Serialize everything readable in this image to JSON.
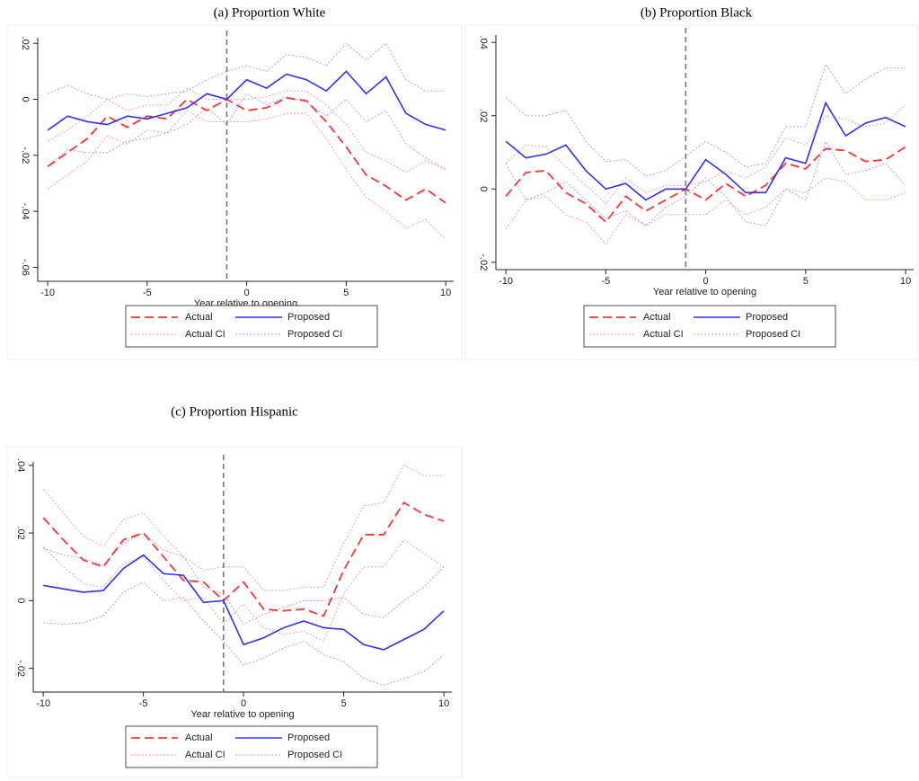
{
  "chart_data": [
    {
      "type": "line",
      "title": "(a) Proportion White",
      "xlabel": "Year relative to opening",
      "x": [
        -10,
        -9,
        -8,
        -7,
        -6,
        -5,
        -4,
        -3,
        -2,
        -1,
        0,
        1,
        2,
        3,
        4,
        5,
        6,
        7,
        8,
        9,
        10
      ],
      "xlim": [
        -10.5,
        10.4
      ],
      "xticks": [
        -10,
        -5,
        0,
        5,
        10
      ],
      "ylim": [
        -0.065,
        0.022
      ],
      "yticks": [
        {
          "value": -0.06,
          "label": "-.06"
        },
        {
          "value": -0.04,
          "label": "-.04"
        },
        {
          "value": -0.02,
          "label": "-.02"
        },
        0,
        {
          "value": 0.02,
          "label": ".02"
        }
      ],
      "vline": -1,
      "series": [
        {
          "name": "Actual",
          "color": "#ff3333",
          "style": "dashed",
          "values": [
            -0.024,
            -0.019,
            -0.014,
            -0.006,
            -0.01,
            -0.006,
            -0.007,
            0.0,
            -0.004,
            0.0,
            -0.004,
            -0.003,
            0.0005,
            -0.0005,
            -0.008,
            -0.017,
            -0.027,
            -0.031,
            -0.036,
            -0.032,
            -0.037
          ]
        },
        {
          "name": "Proposed",
          "color": "#2f2fff",
          "style": "solid",
          "values": [
            -0.011,
            -0.006,
            -0.008,
            -0.009,
            -0.006,
            -0.007,
            -0.005,
            -0.003,
            0.002,
            0.0,
            0.007,
            0.004,
            0.009,
            0.007,
            0.003,
            0.01,
            0.002,
            0.008,
            -0.005,
            -0.009,
            -0.011
          ]
        },
        {
          "name": "Actual CI",
          "color": "#ff9a9a",
          "style": "dotted",
          "upper": [
            -0.015,
            -0.011,
            -0.006,
            0.0,
            -0.004,
            -0.002,
            -0.002,
            0.004,
            0.0,
            0.0,
            0.0,
            0.001,
            0.003,
            0.003,
            -0.002,
            -0.009,
            -0.019,
            -0.022,
            -0.026,
            -0.022,
            -0.025
          ],
          "lower": [
            -0.032,
            -0.027,
            -0.022,
            -0.013,
            -0.016,
            -0.011,
            -0.012,
            -0.004,
            -0.008,
            -0.008,
            -0.008,
            -0.007,
            -0.005,
            -0.005,
            -0.014,
            -0.025,
            -0.035,
            -0.04,
            -0.046,
            -0.043,
            -0.05
          ]
        },
        {
          "name": "Proposed CI",
          "color": "#a0a0ff",
          "style": "dotted",
          "upper": [
            0.002,
            0.005,
            0.002,
            0.0,
            0.002,
            0.001,
            0.002,
            0.003,
            0.007,
            0.01,
            0.012,
            0.01,
            0.016,
            0.015,
            0.012,
            0.02,
            0.014,
            0.02,
            0.007,
            0.003,
            0.003
          ],
          "lower": [
            -0.024,
            -0.018,
            -0.019,
            -0.019,
            -0.015,
            -0.014,
            -0.012,
            -0.009,
            -0.003,
            -0.009,
            0.002,
            -0.002,
            0.001,
            -0.001,
            -0.006,
            0.0,
            -0.008,
            -0.004,
            -0.016,
            -0.021,
            -0.025
          ]
        }
      ]
    },
    {
      "type": "line",
      "title": "(b) Proportion Black",
      "xlabel": "Year relative to opening",
      "x": [
        -10,
        -9,
        -8,
        -7,
        -6,
        -5,
        -4,
        -3,
        -2,
        -1,
        0,
        1,
        2,
        3,
        4,
        5,
        6,
        7,
        8,
        9,
        10
      ],
      "xlim": [
        -10.5,
        10.4
      ],
      "xticks": [
        -10,
        -5,
        0,
        5,
        10
      ],
      "ylim": [
        -0.022,
        0.042
      ],
      "yticks": [
        {
          "value": -0.02,
          "label": "-.02"
        },
        0,
        {
          "value": 0.02,
          "label": ".02"
        },
        {
          "value": 0.04,
          "label": ".04"
        }
      ],
      "vline": -1,
      "series": [
        {
          "name": "Actual",
          "color": "#ff3333",
          "style": "dashed",
          "values": [
            -0.002,
            0.0045,
            0.005,
            -0.001,
            -0.004,
            -0.009,
            -0.002,
            -0.006,
            -0.003,
            0.0,
            -0.003,
            0.0015,
            -0.002,
            0.001,
            0.007,
            0.0055,
            0.011,
            0.0105,
            0.0075,
            0.008,
            0.0115
          ]
        },
        {
          "name": "Proposed",
          "color": "#2f2fff",
          "style": "solid",
          "values": [
            0.013,
            0.0085,
            0.0095,
            0.012,
            0.005,
            0.0,
            0.0015,
            -0.003,
            0.0,
            0.0,
            0.008,
            0.004,
            -0.001,
            -0.001,
            0.0085,
            0.007,
            0.0235,
            0.0145,
            0.018,
            0.0195,
            0.017
          ]
        },
        {
          "name": "Actual CI",
          "color": "#ff9a9a",
          "style": "dotted",
          "upper": [
            0.007,
            0.012,
            0.0115,
            0.006,
            0.001,
            -0.004,
            0.003,
            -0.001,
            0.001,
            0.001,
            0.002,
            0.005,
            0.003,
            0.006,
            0.014,
            0.012,
            0.02,
            0.019,
            0.017,
            0.018,
            0.023
          ],
          "lower": [
            -0.011,
            -0.003,
            -0.002,
            -0.007,
            -0.009,
            -0.015,
            -0.007,
            -0.01,
            -0.007,
            -0.007,
            -0.007,
            -0.003,
            -0.007,
            -0.005,
            0.0,
            -0.001,
            0.003,
            0.002,
            -0.003,
            -0.003,
            -0.001
          ]
        },
        {
          "name": "Proposed CI",
          "color": "#a0a0ff",
          "style": "dotted",
          "upper": [
            0.025,
            0.02,
            0.02,
            0.0215,
            0.013,
            0.0075,
            0.008,
            0.0035,
            0.005,
            0.009,
            0.013,
            0.01,
            0.006,
            0.007,
            0.017,
            0.017,
            0.034,
            0.026,
            0.03,
            0.033,
            0.033
          ],
          "lower": [
            0.007,
            -0.003,
            -0.001,
            0.002,
            -0.003,
            -0.008,
            -0.006,
            -0.01,
            -0.005,
            -0.002,
            0.003,
            -0.002,
            -0.009,
            -0.01,
            0.0,
            -0.003,
            0.013,
            0.004,
            0.005,
            0.007,
            0.001
          ]
        }
      ]
    },
    {
      "type": "line",
      "title": "(c) Proportion Hispanic",
      "xlabel": "Year relative to opening",
      "x": [
        -10,
        -9,
        -8,
        -7,
        -6,
        -5,
        -4,
        -3,
        -2,
        -1,
        0,
        1,
        2,
        3,
        4,
        5,
        6,
        7,
        8,
        9,
        10
      ],
      "xlim": [
        -10.5,
        10.4
      ],
      "xticks": [
        -10,
        -5,
        0,
        5,
        10
      ],
      "ylim": [
        -0.027,
        0.041
      ],
      "yticks": [
        {
          "value": -0.02,
          "label": "-.02"
        },
        0,
        {
          "value": 0.02,
          "label": ".02"
        },
        {
          "value": 0.04,
          "label": ".04"
        }
      ],
      "vline": -1,
      "series": [
        {
          "name": "Actual",
          "color": "#ff3333",
          "style": "dashed",
          "values": [
            0.0245,
            0.018,
            0.012,
            0.01,
            0.018,
            0.02,
            0.013,
            0.006,
            0.0055,
            0.0,
            0.0055,
            -0.0025,
            -0.003,
            -0.0025,
            -0.0045,
            0.009,
            0.0195,
            0.0195,
            0.029,
            0.0255,
            0.0235
          ]
        },
        {
          "name": "Proposed",
          "color": "#2f2fff",
          "style": "solid",
          "values": [
            0.0045,
            0.0035,
            0.0025,
            0.003,
            0.0095,
            0.0135,
            0.008,
            0.0075,
            -0.0005,
            0.0,
            -0.013,
            -0.011,
            -0.008,
            -0.006,
            -0.008,
            -0.0085,
            -0.013,
            -0.0145,
            -0.0115,
            -0.0085,
            -0.003
          ]
        },
        {
          "name": "Actual CI",
          "color": "#ff9a9a",
          "style": "dotted",
          "upper": [
            0.033,
            0.026,
            0.019,
            0.016,
            0.024,
            0.026,
            0.019,
            0.013,
            0.009,
            0.01,
            0.01,
            0.003,
            0.003,
            0.004,
            0.004,
            0.017,
            0.028,
            0.029,
            0.04,
            0.037,
            0.037
          ],
          "lower": [
            0.016,
            0.01,
            0.005,
            0.004,
            0.011,
            0.013,
            0.006,
            0.0,
            0.001,
            -0.007,
            -0.001,
            -0.008,
            -0.01,
            -0.009,
            -0.012,
            0.002,
            0.01,
            0.01,
            0.018,
            0.014,
            0.01
          ]
        },
        {
          "name": "Proposed CI",
          "color": "#a0a0ff",
          "style": "dotted",
          "upper": [
            0.0155,
            0.0135,
            0.0125,
            0.0105,
            0.017,
            0.02,
            0.015,
            0.013,
            0.004,
            0.002,
            -0.007,
            -0.004,
            -0.002,
            0.0,
            0.0,
            0.001,
            -0.004,
            -0.005,
            0.0,
            0.004,
            0.01
          ],
          "lower": [
            -0.0065,
            -0.007,
            -0.0065,
            -0.0045,
            0.0025,
            0.0055,
            0.0,
            0.001,
            -0.006,
            -0.012,
            -0.019,
            -0.017,
            -0.014,
            -0.012,
            -0.016,
            -0.018,
            -0.023,
            -0.025,
            -0.023,
            -0.021,
            -0.016
          ]
        }
      ]
    }
  ]
}
